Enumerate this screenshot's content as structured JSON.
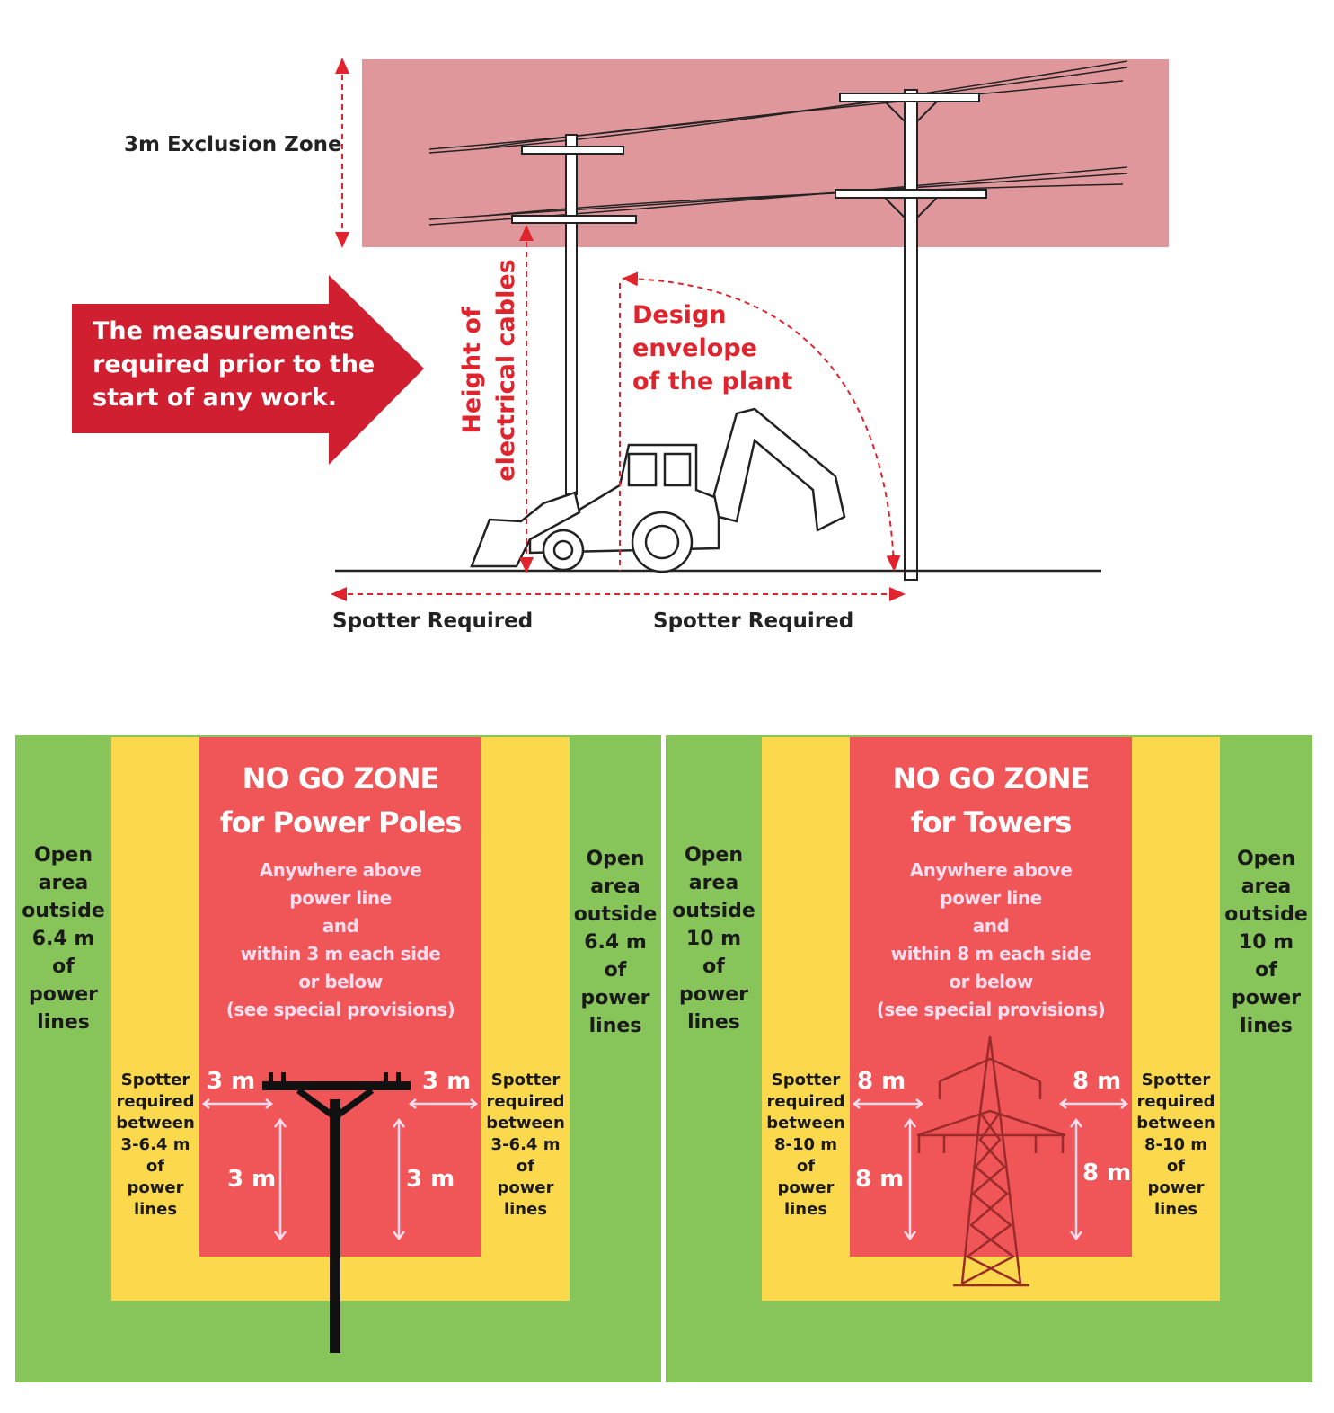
{
  "top_diagram": {
    "exclusion_zone_label": "3m Exclusion Zone",
    "callout_lines": [
      "The measurements",
      "required prior to the",
      "start of any work."
    ],
    "height_label_lines": [
      "Height of",
      "electrical cables"
    ],
    "design_envelope_lines": [
      "Design",
      "envelope",
      "of the plant"
    ],
    "spotter_left": "Spotter Required",
    "spotter_right": "Spotter Required",
    "colors": {
      "exclusion_zone": "#e0979b",
      "callout": "#d01f30",
      "annotation": "#e0242e"
    }
  },
  "poles_panel": {
    "title_lines": [
      "NO GO ZONE",
      "for Power Poles"
    ],
    "description_lines": [
      "Anywhere above",
      "power line",
      "and",
      "within 3 m each side",
      "or below",
      "(see special provisions)"
    ],
    "open_area_lines": [
      "Open",
      "area",
      "outside",
      "6.4 m",
      "of",
      "power",
      "lines"
    ],
    "spotter_lines": [
      "Spotter",
      "required",
      "between",
      "3-6.4 m",
      "of",
      "power",
      "lines"
    ],
    "horizontal_clearance": "3 m",
    "vertical_clearance": "3 m"
  },
  "towers_panel": {
    "title_lines": [
      "NO GO ZONE",
      "for Towers"
    ],
    "description_lines": [
      "Anywhere above",
      "power line",
      "and",
      "within 8 m each side",
      "or below",
      "(see special provisions)"
    ],
    "open_area_lines": [
      "Open",
      "area",
      "outside",
      "10 m",
      "of",
      "power",
      "lines"
    ],
    "spotter_lines": [
      "Spotter",
      "required",
      "between",
      "8-10 m",
      "of",
      "power",
      "lines"
    ],
    "horizontal_clearance": "8 m",
    "vertical_clearance": "8 m"
  },
  "zone_colors": {
    "open": "#87c55a",
    "spotter": "#fcd94c",
    "no_go": "#f05558"
  }
}
